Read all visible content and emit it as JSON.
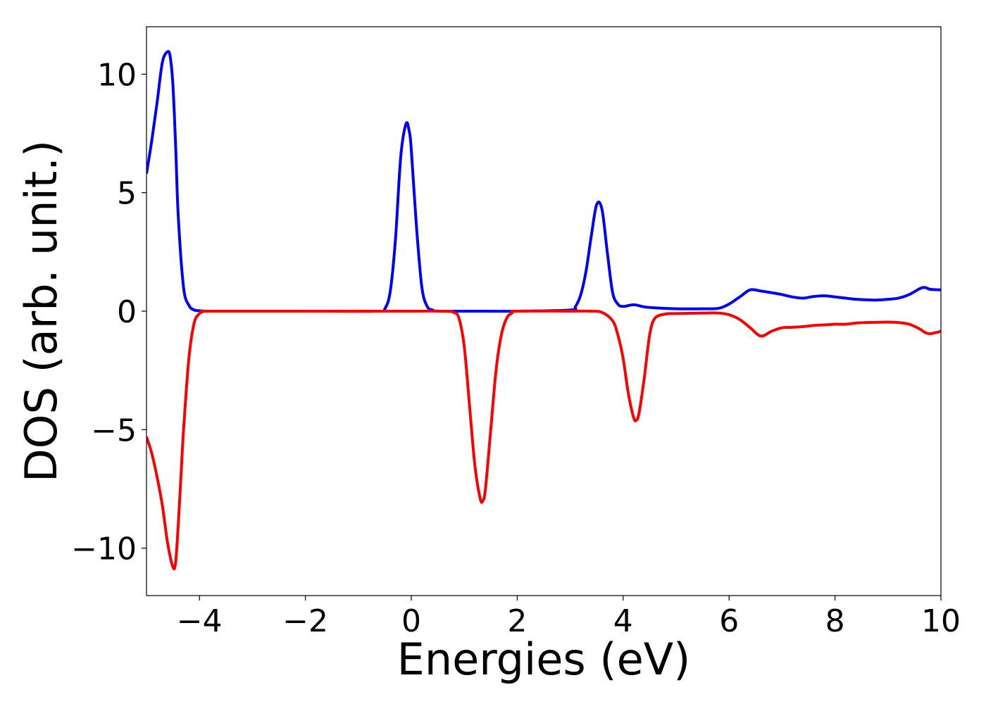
{
  "chart_data": {
    "type": "line",
    "title": "",
    "xlabel": "Energies (eV)",
    "ylabel": "DOS (arb. unit.)",
    "xlim": [
      -5,
      10
    ],
    "ylim": [
      -12,
      12
    ],
    "xticks": [
      -4,
      -2,
      0,
      2,
      4,
      6,
      8,
      10
    ],
    "xtick_labels": [
      "−4",
      "−2",
      "0",
      "2",
      "4",
      "6",
      "8",
      "10"
    ],
    "yticks": [
      -10,
      -5,
      0,
      5,
      10
    ],
    "ytick_labels": [
      "−10",
      "−5",
      "0",
      "5",
      "10"
    ],
    "grid": false,
    "legend": "none",
    "series": [
      {
        "color": "#0000ff",
        "x": [
          -5.0,
          -4.9,
          -4.8,
          -4.7,
          -4.6,
          -4.55,
          -4.5,
          -4.45,
          -4.4,
          -4.3,
          -4.2,
          -4.1,
          -4.0,
          -3.9,
          -3.8,
          -2.0,
          -0.6,
          -0.5,
          -0.4,
          -0.3,
          -0.2,
          -0.1,
          -0.04,
          0.0,
          0.1,
          0.2,
          0.3,
          0.4,
          0.5,
          1.0,
          2.0,
          3.0,
          3.1,
          3.2,
          3.3,
          3.4,
          3.5,
          3.6,
          3.7,
          3.8,
          3.9,
          4.0,
          4.2,
          4.4,
          4.6,
          5.0,
          5.5,
          5.8,
          6.0,
          6.2,
          6.4,
          6.6,
          6.8,
          7.0,
          7.2,
          7.4,
          7.6,
          7.8,
          8.0,
          8.2,
          8.4,
          8.6,
          8.8,
          9.0,
          9.2,
          9.4,
          9.6,
          9.7,
          9.8,
          10.0
        ],
        "y": [
          5.8,
          7.2,
          8.8,
          10.5,
          10.95,
          10.7,
          9.5,
          7.0,
          4.0,
          1.0,
          0.25,
          0.05,
          0.02,
          0.0,
          0.0,
          0.0,
          0.0,
          0.1,
          0.8,
          3.0,
          6.5,
          7.9,
          7.6,
          6.8,
          3.5,
          1.0,
          0.2,
          0.05,
          0.0,
          0.0,
          0.0,
          0.05,
          0.2,
          0.7,
          1.7,
          3.2,
          4.5,
          4.3,
          2.5,
          0.8,
          0.3,
          0.2,
          0.27,
          0.18,
          0.14,
          0.1,
          0.1,
          0.12,
          0.3,
          0.6,
          0.9,
          0.85,
          0.78,
          0.7,
          0.6,
          0.55,
          0.62,
          0.65,
          0.6,
          0.55,
          0.5,
          0.48,
          0.47,
          0.5,
          0.55,
          0.7,
          0.95,
          1.0,
          0.92,
          0.9
        ]
      },
      {
        "color": "#ff0000",
        "x": [
          -5.0,
          -4.9,
          -4.8,
          -4.7,
          -4.6,
          -4.5,
          -4.45,
          -4.4,
          -4.35,
          -4.3,
          -4.2,
          -4.1,
          -4.0,
          -3.95,
          -3.9,
          -3.8,
          -2.0,
          0.0,
          0.6,
          0.8,
          0.9,
          1.0,
          1.1,
          1.2,
          1.3,
          1.35,
          1.4,
          1.5,
          1.6,
          1.7,
          1.8,
          1.9,
          2.0,
          3.0,
          3.4,
          3.6,
          3.8,
          3.9,
          4.0,
          4.1,
          4.2,
          4.25,
          4.3,
          4.4,
          4.5,
          4.6,
          4.8,
          5.0,
          5.5,
          5.8,
          6.0,
          6.2,
          6.4,
          6.6,
          6.8,
          7.0,
          7.2,
          7.4,
          7.6,
          7.8,
          8.0,
          8.2,
          8.4,
          8.6,
          8.8,
          9.0,
          9.2,
          9.4,
          9.6,
          9.7,
          9.8,
          10.0
        ],
        "y": [
          -5.3,
          -6.0,
          -7.0,
          -8.2,
          -9.8,
          -10.8,
          -10.6,
          -9.0,
          -7.0,
          -5.0,
          -2.0,
          -0.5,
          -0.1,
          -0.03,
          0.0,
          0.0,
          0.0,
          0.0,
          0.0,
          -0.05,
          -0.3,
          -1.5,
          -4.0,
          -6.5,
          -7.9,
          -8.0,
          -7.5,
          -5.0,
          -2.5,
          -1.0,
          -0.3,
          -0.08,
          0.0,
          0.0,
          0.0,
          -0.05,
          -0.4,
          -1.0,
          -2.0,
          -3.5,
          -4.5,
          -4.6,
          -4.3,
          -2.8,
          -1.0,
          -0.3,
          -0.12,
          -0.1,
          -0.08,
          -0.08,
          -0.15,
          -0.35,
          -0.7,
          -1.05,
          -0.85,
          -0.7,
          -0.68,
          -0.65,
          -0.6,
          -0.58,
          -0.55,
          -0.55,
          -0.5,
          -0.48,
          -0.47,
          -0.46,
          -0.48,
          -0.55,
          -0.75,
          -0.9,
          -0.95,
          -0.85
        ]
      }
    ]
  }
}
